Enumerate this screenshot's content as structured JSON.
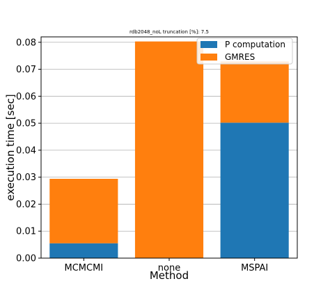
{
  "chart_data": {
    "type": "bar",
    "stacked": true,
    "title": "rdb2048_noL truncation [%]: 7.5",
    "xlabel": "Method",
    "ylabel": "execution time [sec]",
    "categories": [
      "MCMCMI",
      "none",
      "MSPAI"
    ],
    "ylim": [
      0,
      0.082
    ],
    "yticks": [
      "0.00",
      "0.01",
      "0.02",
      "0.03",
      "0.04",
      "0.05",
      "0.06",
      "0.07",
      "0.08"
    ],
    "grid": "horizontal",
    "legend_position": "top-right",
    "series": [
      {
        "name": "P computation",
        "color": "#1f77b4",
        "values": [
          0.0055,
          0.0,
          0.0502
        ]
      },
      {
        "name": "GMRES",
        "color": "#ff7f0e",
        "values": [
          0.0239,
          0.0803,
          0.0227
        ]
      }
    ]
  }
}
